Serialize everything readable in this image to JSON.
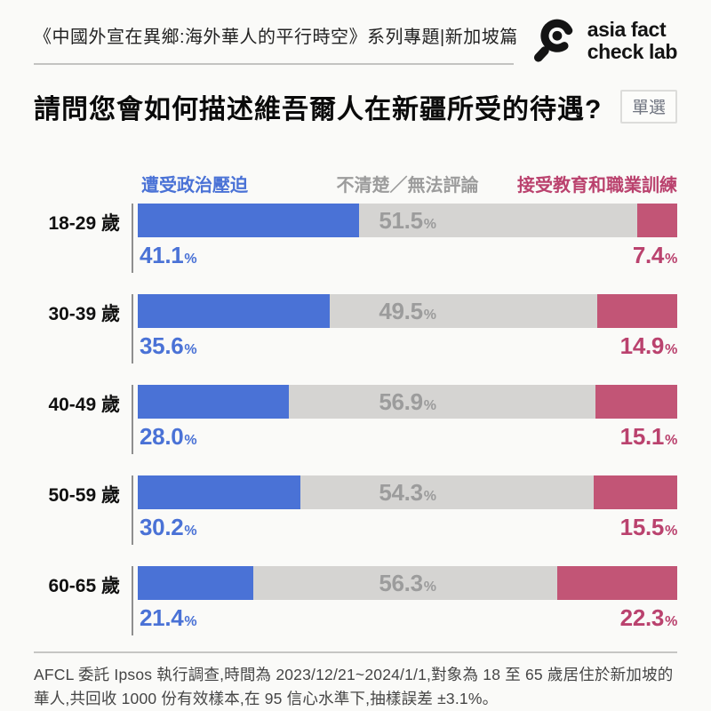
{
  "header": {
    "series_title": "《中國外宣在異鄉:海外華人的平行時空》系列專題|新加坡篇",
    "logo_line1": "asia fact",
    "logo_line2": "check lab",
    "logo_icon": "magnifier-eye-icon",
    "brand_color": "#141414"
  },
  "question": {
    "title": "請問您會如何描述維吾爾人在新疆所受的待遇?",
    "badge": "單選"
  },
  "chart_data": {
    "type": "bar",
    "orientation": "horizontal",
    "stacked": true,
    "value_unit": "%",
    "xlim": [
      0,
      100
    ],
    "legend_position": "top",
    "grid": false,
    "categories": [
      "18-29 歲",
      "30-39 歲",
      "40-49 歲",
      "50-59 歲",
      "60-65 歲"
    ],
    "series": [
      {
        "name": "遭受政治壓迫",
        "color": "#4a72d6",
        "text_color": "#4a72d6",
        "values": [
          "41.1",
          "35.6",
          "28.0",
          "30.2",
          "21.4"
        ]
      },
      {
        "name": "不清楚／無法評論",
        "color": "#d5d4d2",
        "text_color": "#9c9c9c",
        "values": [
          "51.5",
          "49.5",
          "56.9",
          "54.3",
          "56.3"
        ]
      },
      {
        "name": "接受教育和職業訓練",
        "color": "#c25576",
        "text_color": "#ba426e",
        "values": [
          "7.4",
          "14.9",
          "15.1",
          "15.5",
          "22.3"
        ]
      }
    ]
  },
  "footer": {
    "note": "AFCL 委託 Ipsos 執行調查,時間為 2023/12/21~2024/1/1,對象為 18 至 65 歲居住於新加坡的華人,共回收 1000 份有效樣本,在 95 信心水準下,抽樣誤差 ±3.1%。"
  }
}
